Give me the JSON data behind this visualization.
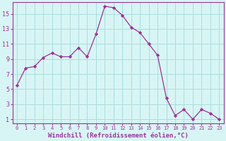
{
  "x": [
    0,
    1,
    2,
    3,
    4,
    5,
    6,
    7,
    8,
    9,
    10,
    11,
    12,
    13,
    14,
    15,
    16,
    17,
    18,
    19,
    20,
    21,
    22,
    23
  ],
  "y": [
    5.5,
    7.8,
    8.0,
    9.2,
    9.8,
    9.3,
    9.3,
    10.5,
    9.3,
    12.3,
    16.0,
    15.8,
    14.8,
    13.2,
    12.5,
    11.0,
    9.5,
    3.8,
    1.5,
    2.3,
    1.0,
    2.3,
    1.8,
    1.0
  ],
  "line_color": "#993399",
  "marker": "D",
  "bg_color": "#d8f5f5",
  "grid_color": "#aadddd",
  "xlabel": "Windchill (Refroidissement éolien,°C)",
  "xlabel_color": "#993399",
  "xticks": [
    0,
    1,
    2,
    3,
    4,
    5,
    6,
    7,
    8,
    9,
    10,
    11,
    12,
    13,
    14,
    15,
    16,
    17,
    18,
    19,
    20,
    21,
    22,
    23
  ],
  "yticks": [
    1,
    3,
    5,
    7,
    9,
    11,
    13,
    15
  ],
  "ylim": [
    0.5,
    16.5
  ],
  "xlim": [
    -0.5,
    23.5
  ],
  "tick_color": "#993399",
  "axis_color": "#993399",
  "font_color": "#993399",
  "spine_color": "#993399"
}
